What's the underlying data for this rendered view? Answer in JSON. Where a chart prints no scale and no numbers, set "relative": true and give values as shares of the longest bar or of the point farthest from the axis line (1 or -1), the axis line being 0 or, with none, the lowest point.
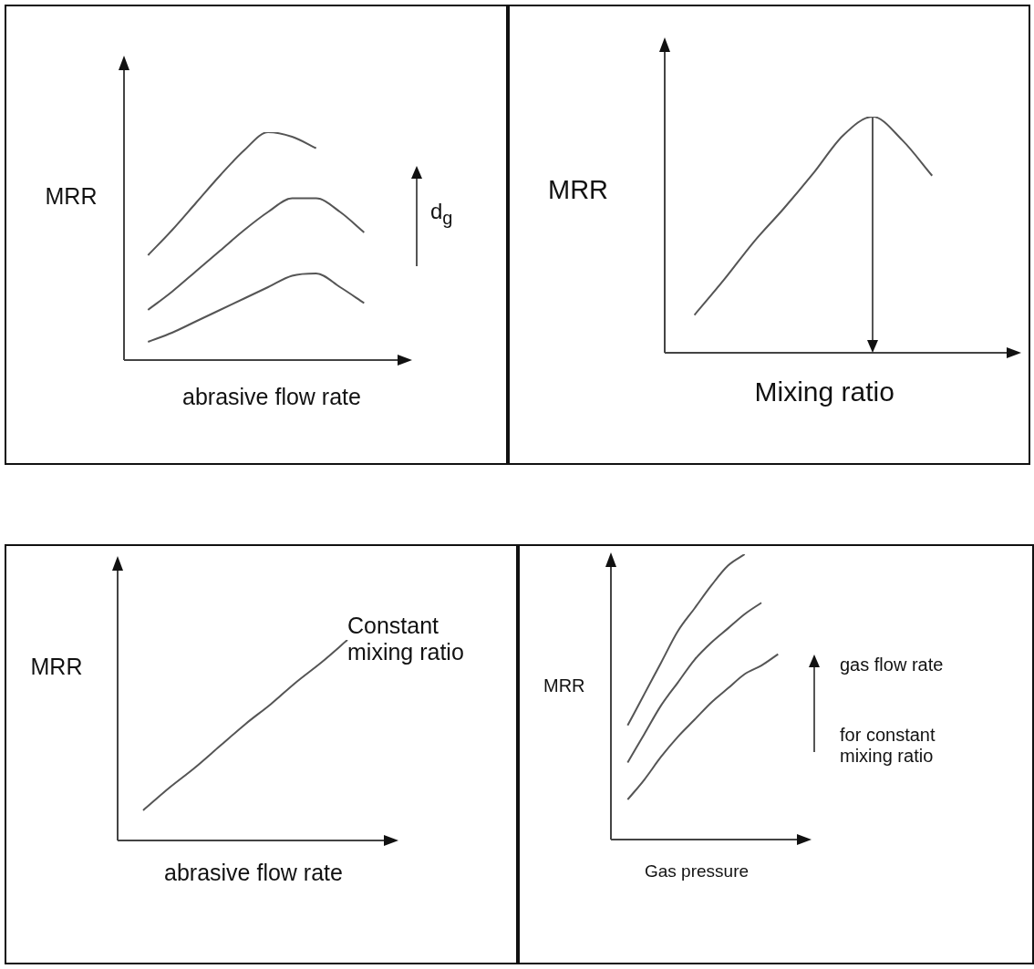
{
  "chart_data": [
    {
      "type": "line",
      "relative": true,
      "marker": "none",
      "xlabel": "abrasive flow rate",
      "ylabel": "MRR",
      "categories": [
        null,
        null,
        null,
        null,
        null,
        null,
        null,
        null,
        null,
        null,
        null,
        null,
        null
      ],
      "series": [
        {
          "color": "#555555",
          "values": [
            null,
            0.46,
            0.57,
            0.69,
            0.81,
            0.92,
            1.0,
            0.98,
            0.93,
            null,
            null,
            null,
            null
          ]
        },
        {
          "color": "#555555",
          "values": [
            null,
            0.22,
            0.3,
            0.39,
            0.48,
            0.57,
            0.65,
            0.71,
            0.71,
            0.65,
            0.56,
            null,
            null
          ]
        },
        {
          "color": "#555555",
          "values": [
            null,
            0.08,
            0.12,
            0.17,
            0.22,
            0.27,
            0.32,
            0.37,
            0.38,
            0.32,
            0.25,
            null,
            null
          ]
        }
      ],
      "annotations": [
        "d$_{g}$"
      ]
    },
    {
      "type": "line",
      "relative": true,
      "marker": "none",
      "xlabel": "Mixing ratio",
      "ylabel": "MRR",
      "categories": [
        null,
        null,
        null,
        null,
        null,
        null,
        null,
        null,
        null,
        null,
        null,
        null,
        null
      ],
      "series": [
        {
          "color": "#555555",
          "values": [
            null,
            0.16,
            0.31,
            0.47,
            0.61,
            0.76,
            0.92,
            1.0,
            0.9,
            0.75,
            null,
            null,
            null
          ]
        }
      ]
    },
    {
      "type": "line",
      "relative": true,
      "marker": "none",
      "xlabel": "abrasive flow rate",
      "ylabel": "MRR",
      "categories": [
        null,
        null,
        null,
        null,
        null,
        null,
        null,
        null,
        null,
        null,
        null,
        null
      ],
      "series": [
        {
          "color": "#555555",
          "values": [
            null,
            0.15,
            0.26,
            0.36,
            0.47,
            0.58,
            0.68,
            0.79,
            0.89,
            1.0,
            null,
            null
          ]
        }
      ],
      "annotations": [
        "Constant mixing ratio"
      ]
    },
    {
      "type": "line",
      "relative": true,
      "marker": "none",
      "xlabel": "Gas pressure",
      "ylabel": "MRR",
      "categories": [
        null,
        null,
        null,
        null,
        null,
        null,
        null,
        null,
        null,
        null,
        null,
        null,
        null
      ],
      "series": [
        {
          "color": "#555555",
          "values": [
            null,
            0.4,
            0.51,
            0.62,
            0.73,
            0.81,
            0.89,
            0.96,
            1.0,
            null,
            null,
            null,
            null
          ]
        },
        {
          "color": "#555555",
          "values": [
            null,
            0.27,
            0.37,
            0.47,
            0.55,
            0.63,
            0.69,
            0.74,
            0.79,
            0.83,
            null,
            null,
            null
          ]
        },
        {
          "color": "#555555",
          "values": [
            null,
            0.14,
            0.21,
            0.29,
            0.36,
            0.42,
            0.48,
            0.53,
            0.58,
            0.61,
            0.65,
            null,
            null
          ]
        }
      ],
      "annotations": [
        "gas flow rate",
        "for constant mixing ratio"
      ]
    }
  ]
}
